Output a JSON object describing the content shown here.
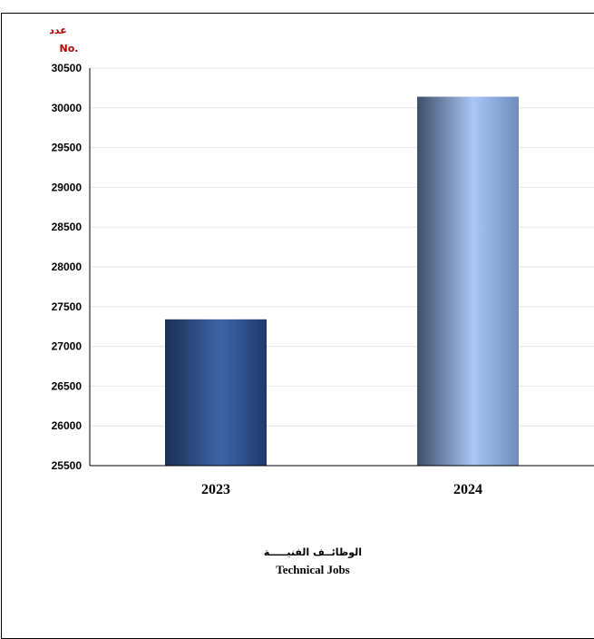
{
  "chart_data": {
    "type": "bar",
    "unit_ar": "عدد",
    "unit_en": "No.",
    "categories": [
      "2023",
      "2024"
    ],
    "values": [
      27340,
      30140
    ],
    "ylim": [
      25500,
      30500
    ],
    "yticks": [
      25500,
      26000,
      26500,
      27000,
      27500,
      28000,
      28500,
      29000,
      29500,
      30000,
      30500
    ],
    "caption_ar": "الوظائــف الفنيـــــة",
    "caption_en": "Technical Jobs",
    "grid": true,
    "bar_gradients": [
      [
        "#1b2f55",
        "#3c66a8",
        "#1e3a6c"
      ],
      [
        "#3e4f68",
        "#a9c6f6",
        "#6f8cbc"
      ]
    ]
  }
}
